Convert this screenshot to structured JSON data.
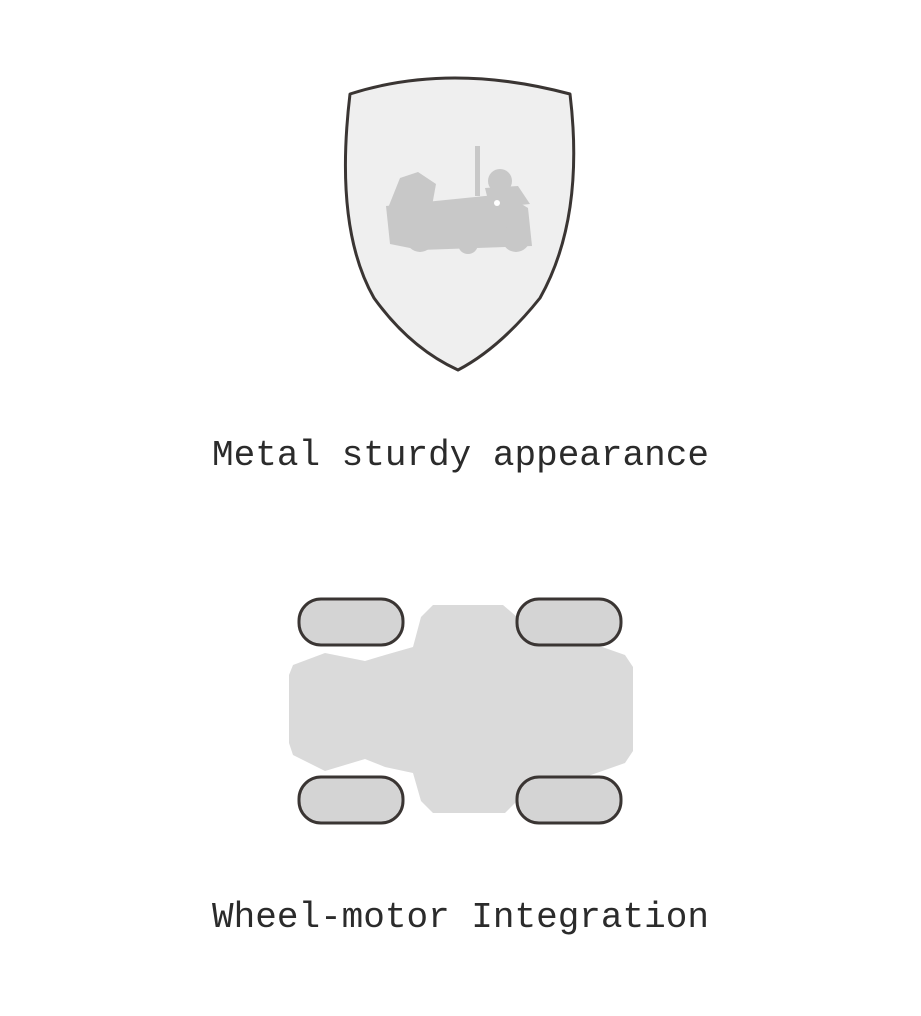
{
  "features": [
    {
      "icon": "shield-robot-icon",
      "caption": "Metal sturdy appearance"
    },
    {
      "icon": "chassis-wheels-icon",
      "caption": "Wheel-motor Integration"
    }
  ],
  "colors": {
    "background": "#ffffff",
    "shield_fill": "#efefef",
    "shield_stroke": "#3a3533",
    "robot_fill": "#c8c8c8",
    "chassis_fill": "#dadada",
    "wheel_fill": "#d4d4d4",
    "wheel_stroke": "#3a3533",
    "text": "#2b2b2b"
  }
}
